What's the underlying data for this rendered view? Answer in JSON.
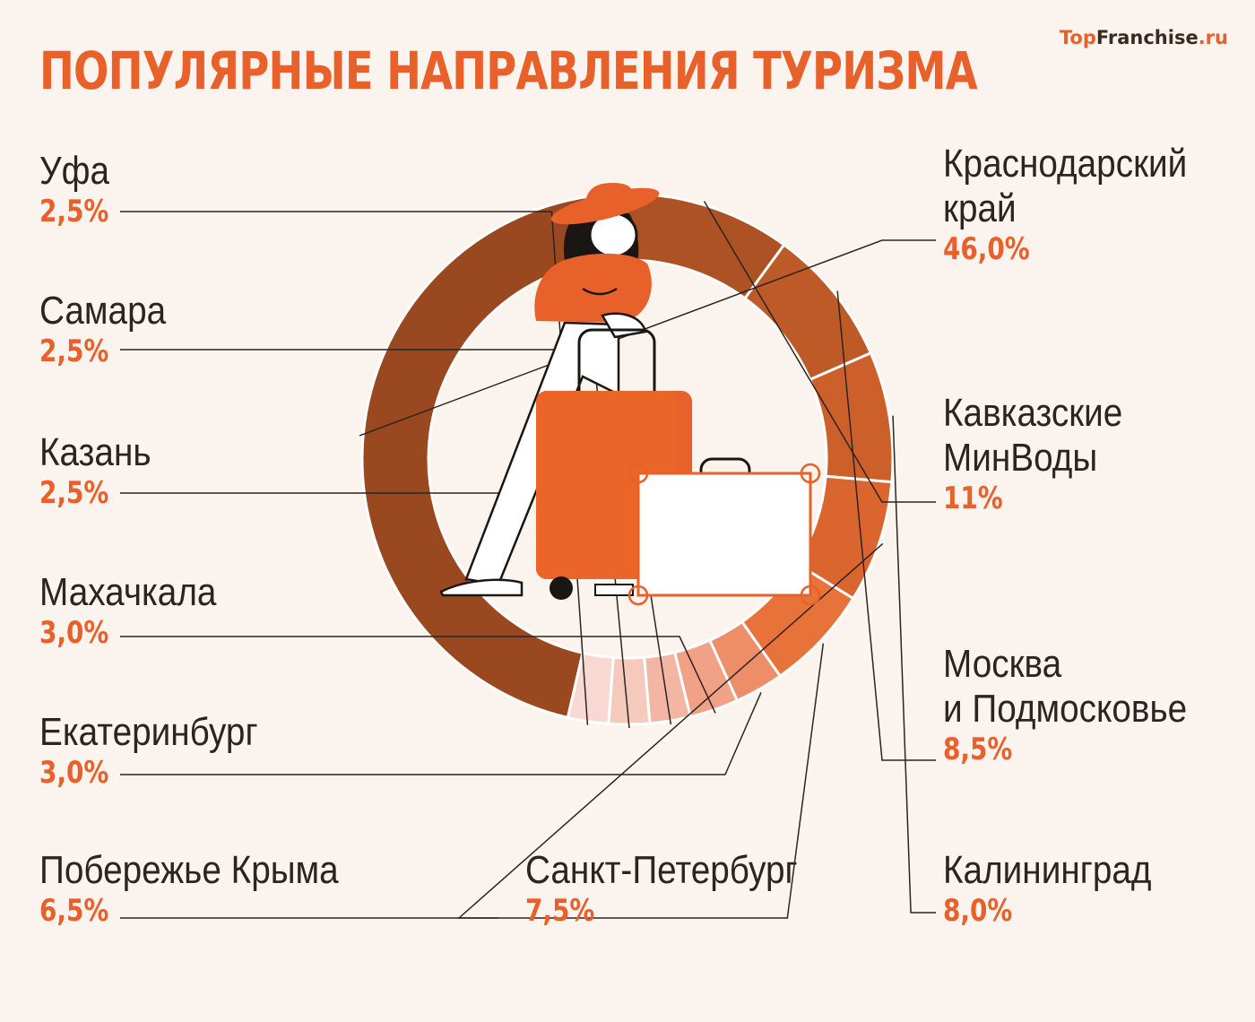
{
  "title": "ПОПУЛЯРНЫЕ НАПРАВЛЕНИЯ ТУРИЗМА",
  "brand": {
    "top": "Top",
    "franchise": "Franchise",
    "ru": ".ru"
  },
  "colors": {
    "accent": "#e8602a",
    "background": "#fbf3ee",
    "text": "#2a2522"
  },
  "chart_data": {
    "type": "pie",
    "style": "donut",
    "title": "ПОПУЛЯРНЫЕ НАПРАВЛЕНИЯ ТУРИЗМА",
    "unit": "%",
    "categories": [
      "Краснодарский край",
      "Кавказские МинВоды",
      "Москва и Подмосковье",
      "Калининград",
      "Санкт-Петербург",
      "Побережье Крыма",
      "Екатеринбург",
      "Махачкала",
      "Казань",
      "Самара",
      "Уфа"
    ],
    "values": [
      46.0,
      11,
      8.5,
      8.0,
      7.5,
      6.5,
      3.0,
      3.0,
      2.5,
      2.5,
      2.5
    ],
    "display_lines": [
      [
        "Краснодарский",
        "край"
      ],
      [
        "Кавказские",
        "МинВоды"
      ],
      [
        "Москва",
        "и Подмосковье"
      ],
      [
        "Калининград"
      ],
      [
        "Санкт-Петербург"
      ],
      [
        "Побережье Крыма"
      ],
      [
        "Екатеринбург"
      ],
      [
        "Махачкала"
      ],
      [
        "Казань"
      ],
      [
        "Самара"
      ],
      [
        "Уфа"
      ]
    ],
    "value_labels": [
      "46,0%",
      "11%",
      "8,5%",
      "8,0%",
      "7,5%",
      "6,5%",
      "3,0%",
      "3,0%",
      "2,5%",
      "2,5%",
      "2,5%"
    ],
    "colors": [
      "#9a4820",
      "#ad5224",
      "#bd5a27",
      "#cd5f2a",
      "#da652f",
      "#e8733a",
      "#ed8e69",
      "#f0a186",
      "#f3b6a3",
      "#f6c9bd",
      "#f8d8d0"
    ],
    "legend": "none"
  }
}
